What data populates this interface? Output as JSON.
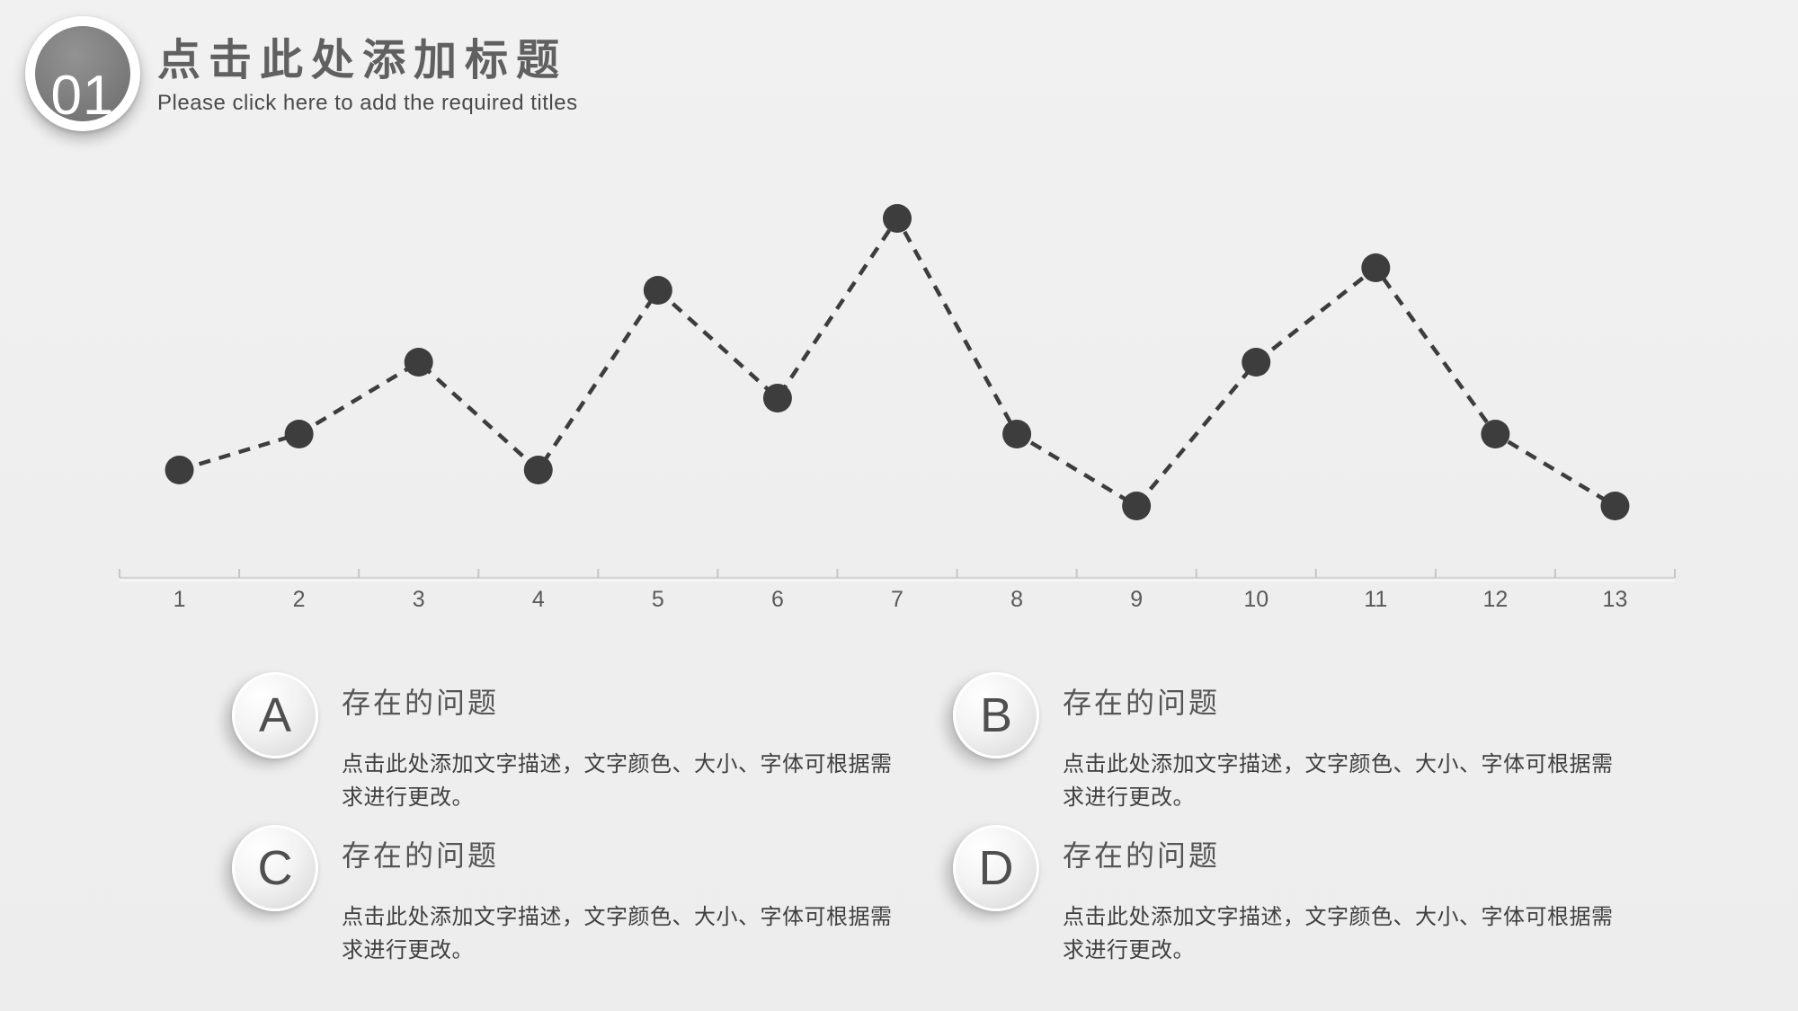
{
  "header": {
    "badge_number": "01",
    "title": "点击此处添加标题",
    "subtitle": "Please click here to add the required titles"
  },
  "chart_data": {
    "type": "line",
    "line_style": "dashed",
    "categories": [
      "1",
      "2",
      "3",
      "4",
      "5",
      "6",
      "7",
      "8",
      "9",
      "10",
      "11",
      "12",
      "13"
    ],
    "values": [
      1.2,
      1.6,
      2.4,
      1.2,
      3.2,
      2.0,
      4.0,
      1.6,
      0.8,
      2.4,
      3.45,
      1.6,
      0.8
    ],
    "title": "",
    "xlabel": "",
    "ylabel": "",
    "ylim": [
      0,
      4.5
    ],
    "grid": false,
    "legend": false,
    "marker_color": "#3d3d3d",
    "line_color": "#3d3d3d",
    "axis_color": "#d4d4d4",
    "tick_color": "#c6c6c6",
    "tick_label_color": "#595959"
  },
  "sections": [
    {
      "letter": "A",
      "heading": "存在的问题",
      "description": "点击此处添加文字描述，文字颜色、大小、字体可根据需求进行更改。"
    },
    {
      "letter": "B",
      "heading": "存在的问题",
      "description": "点击此处添加文字描述，文字颜色、大小、字体可根据需求进行更改。"
    },
    {
      "letter": "C",
      "heading": "存在的问题",
      "description": "点击此处添加文字描述，文字颜色、大小、字体可根据需求进行更改。"
    },
    {
      "letter": "D",
      "heading": "存在的问题",
      "description": "点击此处添加文字描述，文字颜色、大小、字体可根据需求进行更改。"
    }
  ],
  "colors": {
    "background": "#efefef",
    "title_text": "#606060",
    "subtitle_text": "#4a4a4a",
    "heading_text": "#555555",
    "body_text": "#3f3f3f",
    "badge_fill": "#7b7b7b",
    "badge_number_text": "#ffffff",
    "card_letter_text": "#4f4f4f"
  }
}
